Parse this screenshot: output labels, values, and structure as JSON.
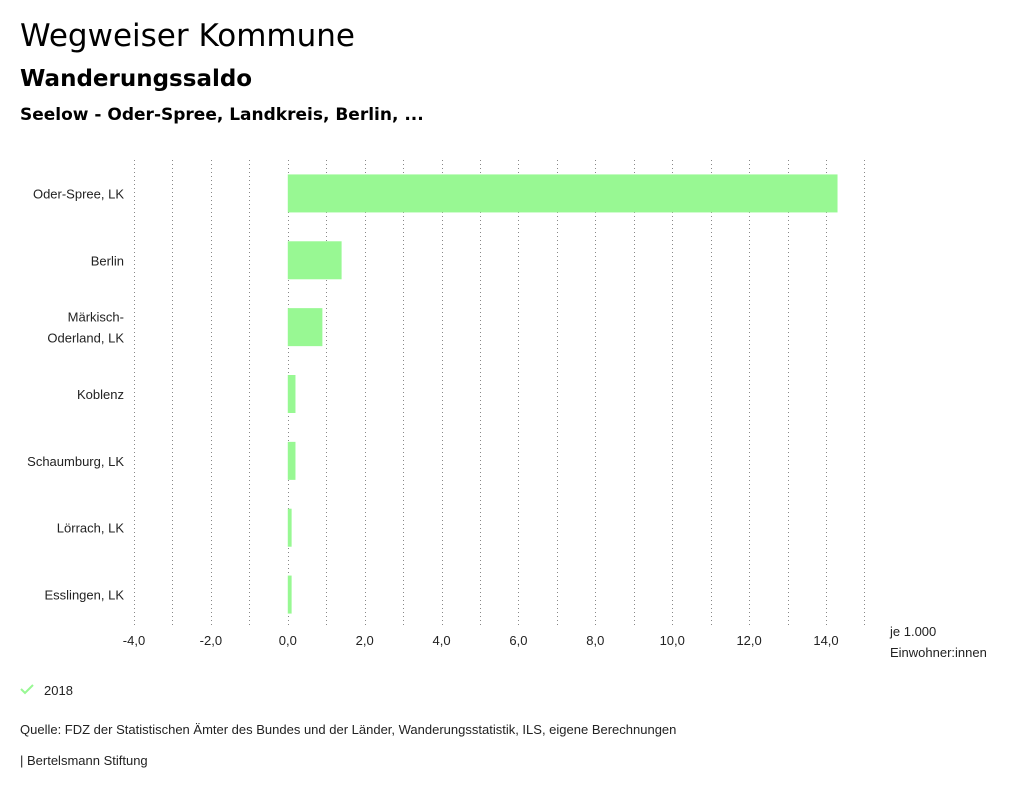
{
  "header": {
    "title": "Wegweiser Kommune",
    "subtitle": "Wanderungssaldo",
    "region": "Seelow - Oder-Spree, Landkreis, Berlin, ..."
  },
  "chart_data": {
    "type": "bar",
    "orientation": "horizontal",
    "categories": [
      [
        "Oder-Spree, LK"
      ],
      [
        "Berlin"
      ],
      [
        "Märkisch-",
        "Oderland, LK"
      ],
      [
        "Koblenz"
      ],
      [
        "Schaumburg, LK"
      ],
      [
        "Lörrach, LK"
      ],
      [
        "Esslingen, LK"
      ]
    ],
    "series": [
      {
        "name": "2018",
        "color": "#98f893",
        "values": [
          14.3,
          1.4,
          0.9,
          0.2,
          0.2,
          0.1,
          0.1
        ]
      }
    ],
    "xlim": [
      -4,
      15
    ],
    "xticks": [
      -4,
      -2,
      0,
      2,
      4,
      6,
      8,
      10,
      12,
      14
    ],
    "tick_labels": [
      "-4,0",
      "-2,0",
      "0,0",
      "2,0",
      "4,0",
      "6,0",
      "8,0",
      "10,0",
      "12,0",
      "14,0"
    ],
    "xlabel": [
      "je 1.000",
      "Einwohner:innen"
    ],
    "grid": true
  },
  "legend": {
    "label": "2018",
    "color": "#98f893"
  },
  "footer": {
    "source": "Quelle: FDZ der Statistischen Ämter des Bundes und der Länder, Wanderungsstatistik, ILS, eigene Berechnungen",
    "publisher": "| Bertelsmann Stiftung"
  }
}
